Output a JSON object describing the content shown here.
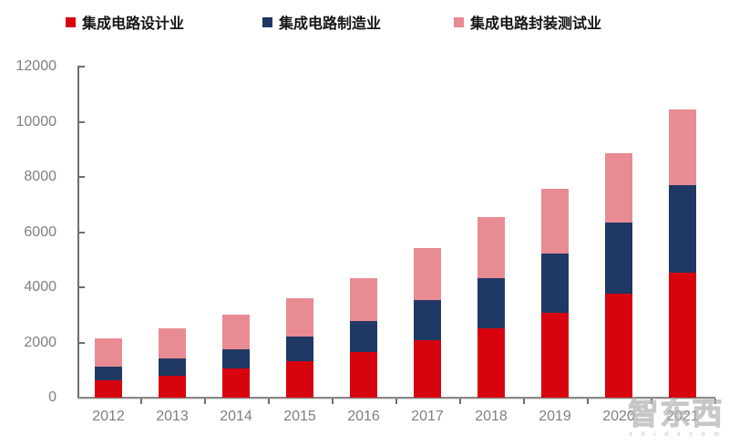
{
  "legend": {
    "items": [
      {
        "label": "集成电路设计业",
        "color": "#D7040F"
      },
      {
        "label": "集成电路制造业",
        "color": "#1F3864"
      },
      {
        "label": "集成电路封装测试业",
        "color": "#E88B92"
      }
    ]
  },
  "watermark": {
    "text": "智东西",
    "subtext": "z h i d x c o m"
  },
  "chart_data": {
    "type": "bar",
    "stacked": true,
    "title": "",
    "xlabel": "",
    "ylabel": "",
    "categories": [
      "2012",
      "2013",
      "2014",
      "2015",
      "2016",
      "2017",
      "2018",
      "2019",
      "2020",
      "2021"
    ],
    "series": [
      {
        "name": "集成电路设计业",
        "color": "#D7040F",
        "values": [
          622,
          809,
          1047,
          1325,
          1644,
          2074,
          2519,
          3064,
          3778,
          4519
        ]
      },
      {
        "name": "集成电路制造业",
        "color": "#1F3864",
        "values": [
          501,
          601,
          712,
          901,
          1127,
          1448,
          1818,
          2149,
          2560,
          3176
        ]
      },
      {
        "name": "集成电路封装测试业",
        "color": "#E88B92",
        "values": [
          1036,
          1099,
          1256,
          1384,
          1564,
          1890,
          2194,
          2350,
          2510,
          2763
        ]
      }
    ],
    "totals": [
      2159,
      2509,
      3015,
      3610,
      4335,
      5412,
      6531,
      7563,
      8848,
      10458
    ],
    "ylim": [
      0,
      12000
    ],
    "yticks": [
      0,
      2000,
      4000,
      6000,
      8000,
      10000,
      12000
    ],
    "grid": false,
    "legend_position": "top-left",
    "axis_tick_color": "#6e6e6e",
    "axis_label_color": "#7f7f7f"
  }
}
